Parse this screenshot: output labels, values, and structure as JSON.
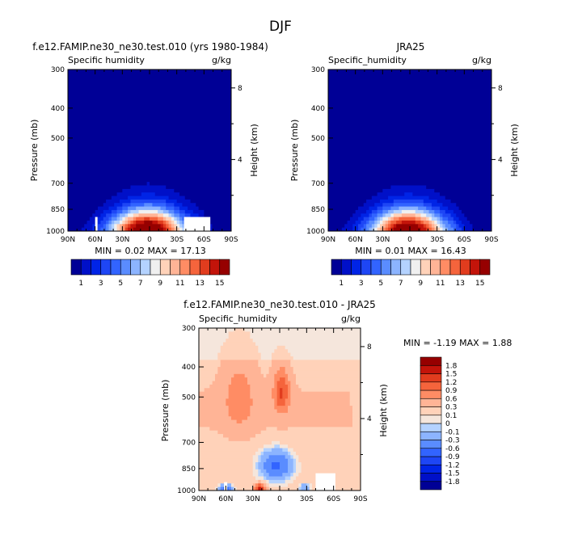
{
  "figure_title": "DJF",
  "chart_data": [
    {
      "type": "heatmap",
      "id": "model",
      "title": "f.e12.FAMIP.ne30_ne30.test.010 (yrs 1980-1984)",
      "left_label": "Specific humidity",
      "units": "g/kg",
      "ylabel": "Pressure (mb)",
      "y2label": "Height (km)",
      "x_ticks": [
        "90N",
        "60N",
        "30N",
        "0",
        "30S",
        "60S",
        "90S"
      ],
      "y_ticks": [
        "300",
        "400",
        "500",
        "700",
        "850",
        "1000"
      ],
      "y2_ticks": [
        "8",
        "4"
      ],
      "min_max_text": "MIN =   0.02   MAX =   17.13",
      "min": 0.02,
      "max": 17.13,
      "peak_lat": 0,
      "peak_value": 17,
      "missing_region": "lower southern subtropics",
      "levels": [
        1,
        2,
        3,
        4,
        5,
        6,
        7,
        8,
        9,
        10,
        11,
        12,
        13,
        14,
        15
      ],
      "colorbar_labels": [
        "1",
        "3",
        "5",
        "7",
        "9",
        "11",
        "13",
        "15"
      ],
      "colors": [
        "#000096",
        "#0010c8",
        "#0024e6",
        "#1e46f5",
        "#3264ff",
        "#5a8cff",
        "#8cb4ff",
        "#b4d2ff",
        "#f0f0f0",
        "#ffd2b9",
        "#ffb496",
        "#ff8c64",
        "#f5643c",
        "#e13c1e",
        "#c3140a",
        "#960000"
      ]
    },
    {
      "type": "heatmap",
      "id": "obs",
      "title": "JRA25",
      "left_label": "Specific_humidity",
      "units": "g/kg",
      "ylabel": "Pressure (mb)",
      "y2label": "Height (km)",
      "x_ticks": [
        "90N",
        "60N",
        "30N",
        "0",
        "30S",
        "60S",
        "90S"
      ],
      "y_ticks": [
        "300",
        "400",
        "500",
        "700",
        "850",
        "1000"
      ],
      "y2_ticks": [
        "8",
        "4"
      ],
      "min_max_text": "MIN =   0.01   MAX =   16.43",
      "min": 0.01,
      "max": 16.43,
      "peak_lat": 0,
      "peak_value": 16.4,
      "levels": [
        1,
        2,
        3,
        4,
        5,
        6,
        7,
        8,
        9,
        10,
        11,
        12,
        13,
        14,
        15
      ],
      "colorbar_labels": [
        "1",
        "3",
        "5",
        "7",
        "9",
        "11",
        "13",
        "15"
      ],
      "colors": [
        "#000096",
        "#0010c8",
        "#0024e6",
        "#1e46f5",
        "#3264ff",
        "#5a8cff",
        "#8cb4ff",
        "#b4d2ff",
        "#f0f0f0",
        "#ffd2b9",
        "#ffb496",
        "#ff8c64",
        "#f5643c",
        "#e13c1e",
        "#c3140a",
        "#960000"
      ]
    },
    {
      "type": "heatmap",
      "id": "diff",
      "title": "f.e12.FAMIP.ne30_ne30.test.010 - JRA25",
      "left_label": "Specific_humidity",
      "units": "g/kg",
      "ylabel": "Pressure (mb)",
      "y2label": "Height (km)",
      "x_ticks": [
        "90N",
        "60N",
        "30N",
        "0",
        "30S",
        "60S",
        "90S"
      ],
      "y_ticks": [
        "300",
        "400",
        "500",
        "700",
        "850",
        "1000"
      ],
      "y2_ticks": [
        "8",
        "4"
      ],
      "min_max_text": "MIN =   -1.19   MAX =   1.88",
      "min": -1.19,
      "max": 1.88,
      "levels": [
        -1.8,
        -1.5,
        -1.2,
        -0.9,
        -0.6,
        -0.3,
        -0.1,
        0,
        0.1,
        0.3,
        0.6,
        0.9,
        1.2,
        1.5,
        1.8
      ],
      "colorbar_labels": [
        "1.8",
        "1.5",
        "1.2",
        "0.9",
        "0.6",
        "0.3",
        "0.1",
        "0",
        "-0.1",
        "-0.3",
        "-0.6",
        "-0.9",
        "-1.2",
        "-1.5",
        "-1.8"
      ],
      "colors": [
        "#000096",
        "#0010c8",
        "#0024e6",
        "#1e46f5",
        "#3264ff",
        "#5a8cff",
        "#8cb4ff",
        "#b4d2ff",
        "#f5e6dc",
        "#ffd2b9",
        "#ffb496",
        "#ff8c64",
        "#f5643c",
        "#e13c1e",
        "#c3140a",
        "#960000"
      ]
    }
  ]
}
